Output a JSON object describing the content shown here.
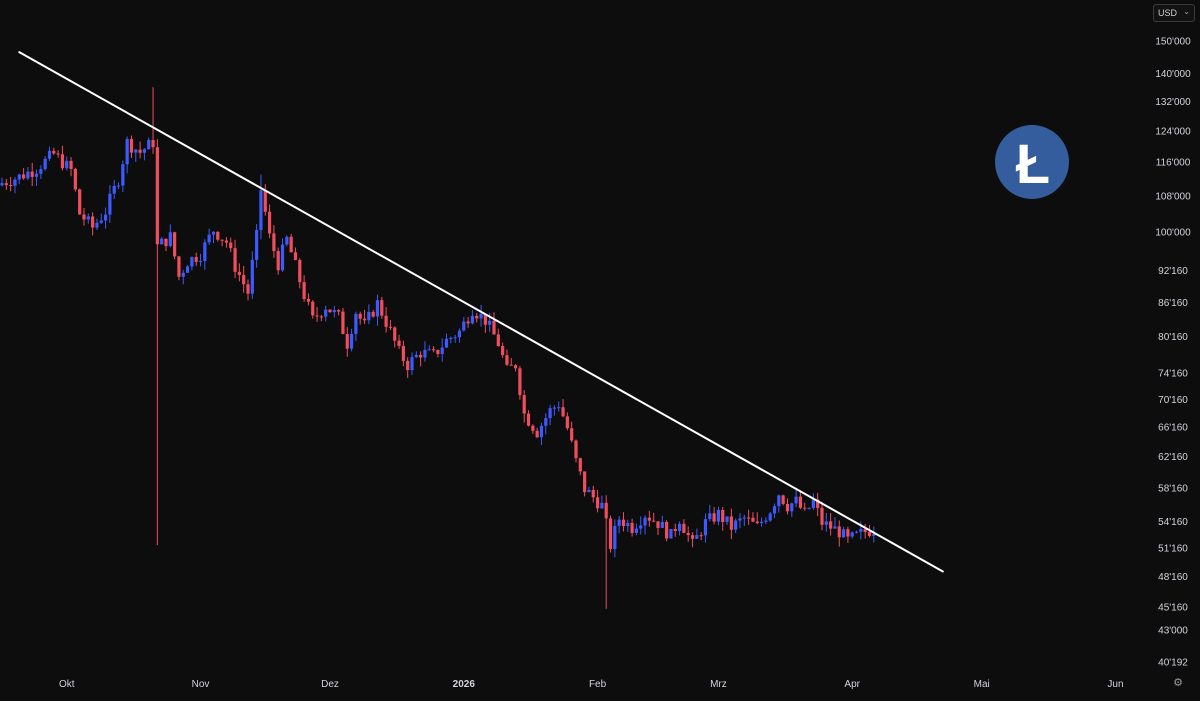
{
  "currency": {
    "label": "USD",
    "chevron_icon": "chevron-down-icon"
  },
  "settings": {
    "icon": "gear-icon"
  },
  "logo": {
    "icon": "litecoin-logo-icon",
    "glyph": "Ł",
    "color": "#345d9d"
  },
  "colors": {
    "up": "#3b5bff",
    "down": "#f04e5d",
    "trendline": "#ffffff",
    "background": "#0d0d0d",
    "axis_text": "#d1d4dc"
  },
  "chart_data": {
    "type": "candlestick",
    "title": "",
    "xlabel": "",
    "ylabel": "",
    "y_scale": "log",
    "ylim": [
      39000,
      156000
    ],
    "xlim": [
      "2025-09-16",
      "2026-06-09"
    ],
    "grid": false,
    "x_ticks": [
      {
        "date": "2025-10-01",
        "label": "Okt"
      },
      {
        "date": "2025-11-01",
        "label": "Nov"
      },
      {
        "date": "2025-12-01",
        "label": "Dez"
      },
      {
        "date": "2026-01-01",
        "label": "2026",
        "bold": true
      },
      {
        "date": "2026-02-01",
        "label": "Feb"
      },
      {
        "date": "2026-03-01",
        "label": "Mrz"
      },
      {
        "date": "2026-04-01",
        "label": "Apr"
      },
      {
        "date": "2026-05-01",
        "label": "Mai"
      },
      {
        "date": "2026-06-01",
        "label": "Jun"
      }
    ],
    "y_ticks": [
      {
        "value": 150000,
        "label": "150'000"
      },
      {
        "value": 140000,
        "label": "140'000"
      },
      {
        "value": 132000,
        "label": "132'000"
      },
      {
        "value": 124000,
        "label": "124'000"
      },
      {
        "value": 116000,
        "label": "116'000"
      },
      {
        "value": 108000,
        "label": "108'000"
      },
      {
        "value": 100000,
        "label": "100'000"
      },
      {
        "value": 92160,
        "label": "92'160"
      },
      {
        "value": 86160,
        "label": "86'160"
      },
      {
        "value": 80160,
        "label": "80'160"
      },
      {
        "value": 74160,
        "label": "74'160"
      },
      {
        "value": 70160,
        "label": "70'160"
      },
      {
        "value": 66160,
        "label": "66'160"
      },
      {
        "value": 62160,
        "label": "62'160"
      },
      {
        "value": 58160,
        "label": "58'160"
      },
      {
        "value": 54160,
        "label": "54'160"
      },
      {
        "value": 51160,
        "label": "51'160"
      },
      {
        "value": 48160,
        "label": "48'160"
      },
      {
        "value": 45160,
        "label": "45'160"
      },
      {
        "value": 43000,
        "label": "43'000"
      },
      {
        "value": 40192,
        "label": "40'192"
      }
    ],
    "trendline": {
      "start": {
        "date": "2025-09-20",
        "value": 146500
      },
      "end": {
        "date": "2026-04-22",
        "value": 48700
      }
    },
    "close_path": [
      [
        "2025-09-16",
        111000
      ],
      [
        "2025-09-20",
        112500
      ],
      [
        "2025-09-24",
        114500
      ],
      [
        "2025-09-28",
        118000
      ],
      [
        "2025-10-02",
        114000
      ],
      [
        "2025-10-04",
        104000
      ],
      [
        "2025-10-07",
        101000
      ],
      [
        "2025-10-10",
        104500
      ],
      [
        "2025-10-13",
        112000
      ],
      [
        "2025-10-15",
        121000
      ],
      [
        "2025-10-18",
        118500
      ],
      [
        "2025-10-21",
        121000
      ],
      [
        "2025-10-22",
        97000
      ],
      [
        "2025-10-25",
        99000
      ],
      [
        "2025-10-27",
        91000
      ],
      [
        "2025-10-29",
        94000
      ],
      [
        "2025-11-01",
        95500
      ],
      [
        "2025-11-04",
        100500
      ],
      [
        "2025-11-07",
        98000
      ],
      [
        "2025-11-09",
        93000
      ],
      [
        "2025-11-12",
        88000
      ],
      [
        "2025-11-14",
        99000
      ],
      [
        "2025-11-15",
        109500
      ],
      [
        "2025-11-17",
        99000
      ],
      [
        "2025-11-19",
        93500
      ],
      [
        "2025-11-21",
        98500
      ],
      [
        "2025-11-23",
        93000
      ],
      [
        "2025-11-25",
        87500
      ],
      [
        "2025-11-27",
        83000
      ],
      [
        "2025-11-30",
        85500
      ],
      [
        "2025-12-03",
        83500
      ],
      [
        "2025-12-05",
        79000
      ],
      [
        "2025-12-07",
        84500
      ],
      [
        "2025-12-09",
        82000
      ],
      [
        "2025-12-12",
        86000
      ],
      [
        "2025-12-15",
        81000
      ],
      [
        "2025-12-17",
        77500
      ],
      [
        "2025-12-19",
        75500
      ],
      [
        "2025-12-22",
        77500
      ],
      [
        "2025-12-25",
        77000
      ],
      [
        "2025-12-28",
        79500
      ],
      [
        "2025-12-31",
        81000
      ],
      [
        "2026-01-03",
        85000
      ],
      [
        "2026-01-06",
        83000
      ],
      [
        "2026-01-09",
        79000
      ],
      [
        "2026-01-11",
        74500
      ],
      [
        "2026-01-13",
        75500
      ],
      [
        "2026-01-15",
        68000
      ],
      [
        "2026-01-18",
        65500
      ],
      [
        "2026-01-21",
        68500
      ],
      [
        "2026-01-23",
        69500
      ],
      [
        "2026-01-25",
        66000
      ],
      [
        "2026-01-27",
        61500
      ],
      [
        "2026-01-29",
        58000
      ],
      [
        "2026-01-31",
        57000
      ],
      [
        "2026-02-02",
        56000
      ],
      [
        "2026-02-04",
        51500
      ],
      [
        "2026-02-06",
        54500
      ],
      [
        "2026-02-09",
        53500
      ],
      [
        "2026-02-12",
        55000
      ],
      [
        "2026-02-15",
        54000
      ],
      [
        "2026-02-18",
        52500
      ],
      [
        "2026-02-20",
        54500
      ],
      [
        "2026-02-23",
        51500
      ],
      [
        "2026-02-26",
        54000
      ],
      [
        "2026-03-01",
        55000
      ],
      [
        "2026-03-04",
        53500
      ],
      [
        "2026-03-07",
        54500
      ],
      [
        "2026-03-10",
        53500
      ],
      [
        "2026-03-13",
        55500
      ],
      [
        "2026-03-15",
        57500
      ],
      [
        "2026-03-17",
        56000
      ],
      [
        "2026-03-19",
        56500
      ],
      [
        "2026-03-21",
        55000
      ],
      [
        "2026-03-23",
        56500
      ],
      [
        "2026-03-25",
        54000
      ],
      [
        "2026-03-27",
        53500
      ],
      [
        "2026-03-29",
        53000
      ],
      [
        "2026-03-31",
        52000
      ],
      [
        "2026-04-02",
        52500
      ],
      [
        "2026-04-04",
        53000
      ],
      [
        "2026-04-06",
        53300
      ]
    ],
    "wick_extremes": [
      {
        "date": "2025-10-21",
        "value": 136000
      },
      {
        "date": "2025-10-22",
        "value": 51500
      },
      {
        "date": "2025-11-15",
        "value": 113000
      },
      {
        "date": "2026-02-03",
        "value": 45000
      }
    ]
  }
}
